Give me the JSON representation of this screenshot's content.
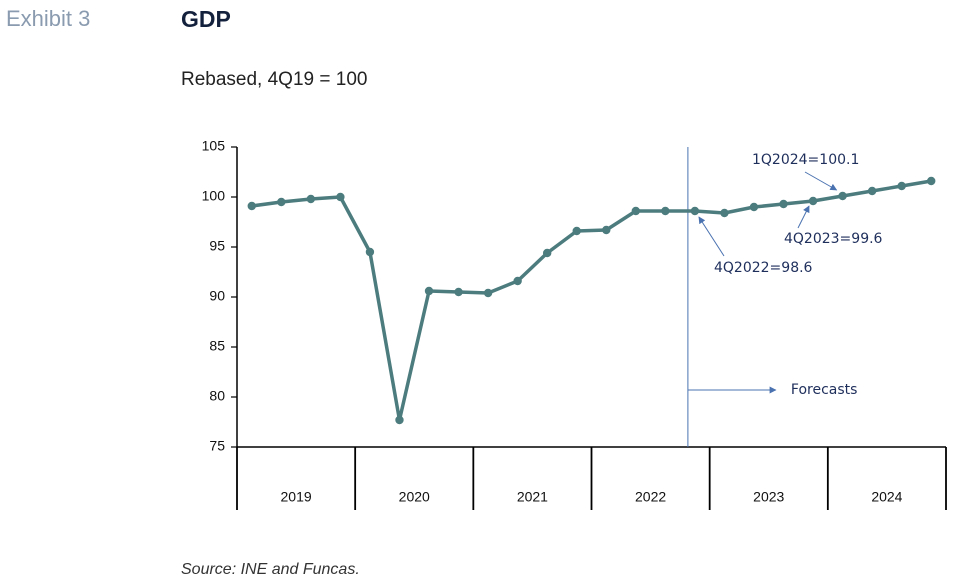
{
  "exhibit": "Exhibit 3",
  "chart_data": {
    "type": "line",
    "title": "GDP",
    "subtitle": "Rebased, 4Q19 = 100",
    "categories": [
      null,
      null,
      null,
      null,
      null,
      null,
      null,
      null,
      null,
      null,
      null,
      null,
      null,
      null,
      null,
      null,
      null,
      null,
      null,
      null,
      null,
      null,
      null,
      null
    ],
    "year_labels": [
      "2019",
      "2020",
      "2021",
      "2022",
      "2023",
      "2024"
    ],
    "series": [
      {
        "name": "GDP",
        "color": "#4d7c7e",
        "values": [
          99.1,
          99.5,
          99.8,
          100.0,
          94.5,
          77.7,
          90.6,
          90.5,
          90.4,
          91.6,
          94.4,
          96.6,
          96.7,
          98.6,
          98.6,
          98.6,
          98.4,
          99.0,
          99.3,
          99.6,
          100.1,
          100.6,
          101.1,
          101.6
        ]
      }
    ],
    "ylim": [
      75,
      105
    ],
    "yticks": [
      75,
      80,
      85,
      90,
      95,
      100,
      105
    ],
    "annotations": [
      "1Q2024=100.1",
      "4Q2023=99.6",
      "4Q2022=98.6",
      "Forecasts"
    ],
    "source": "Source: INE and Funcas."
  }
}
